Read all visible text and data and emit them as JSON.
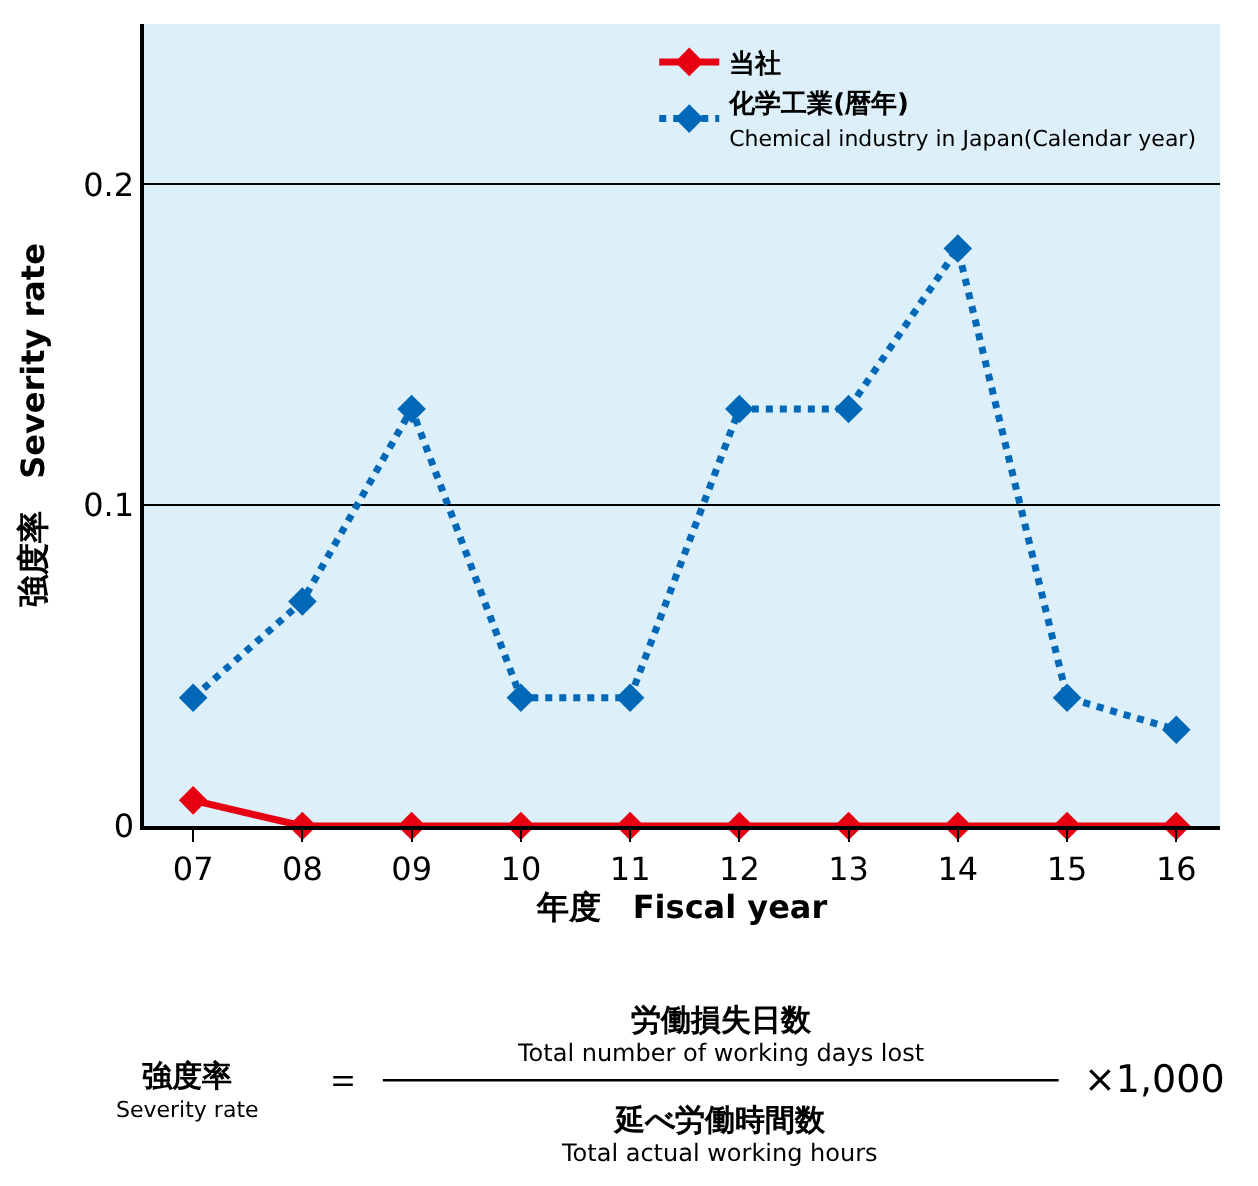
{
  "chart_data": {
    "type": "line",
    "categories": [
      "07",
      "08",
      "09",
      "10",
      "11",
      "12",
      "13",
      "14",
      "15",
      "16"
    ],
    "series": [
      {
        "name": "当社",
        "color": "#e60012",
        "values": [
          0.008,
          0,
          0,
          0,
          0,
          0,
          0,
          0,
          0,
          0
        ],
        "line_style": "solid"
      },
      {
        "name": "化学工業(暦年)\nChemical industry in Japan(Calendar year)",
        "color": "#0068b7",
        "values": [
          0.04,
          0.07,
          0.13,
          0.04,
          0.04,
          0.13,
          0.13,
          0.18,
          0.04,
          0.03
        ],
        "line_style": "dotted"
      }
    ],
    "ylim": [
      0,
      0.25
    ],
    "yticks": [
      0,
      0.1,
      0.2
    ],
    "xlabel": "年度　Fiscal year",
    "ylabel": "強度率　Severity rate",
    "marker": "diamond",
    "grid": "y",
    "legend": "top right",
    "annotations": [
      "強度率\nSeverity rate",
      "＝",
      "労働損失日数\nTotal number of working days lost",
      "延べ労働時間数\nTotal actual working hours",
      "×1,000"
    ]
  }
}
